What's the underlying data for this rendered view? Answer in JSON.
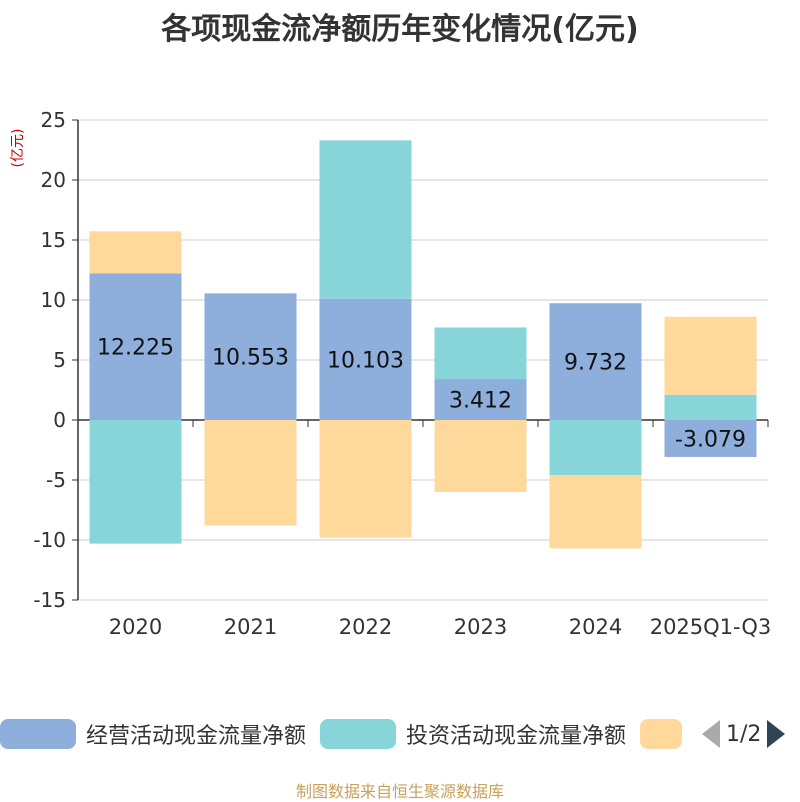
{
  "chart_data": {
    "type": "bar",
    "stacked": true,
    "title": "各项现金流净额历年变化情况(亿元)",
    "ylabel": "(亿元)",
    "xlabel": "",
    "ylim": [
      -15,
      25
    ],
    "yticks": [
      25,
      20,
      15,
      10,
      5,
      0,
      -5,
      -10,
      -15
    ],
    "grid": true,
    "categories": [
      "2020",
      "2021",
      "2022",
      "2023",
      "2024",
      "2025Q1-Q3"
    ],
    "series": [
      {
        "name": "经营活动现金流量净额",
        "color": "#8eaedc",
        "values": [
          12.225,
          10.553,
          10.103,
          3.412,
          9.732,
          -3.079
        ],
        "labels": [
          "12.225",
          "10.553",
          "10.103",
          "3.412",
          "9.732",
          "-3.079"
        ]
      },
      {
        "name": "投资活动现金流量净额",
        "color": "#87d5d8",
        "values": [
          -10.3,
          null,
          13.2,
          4.3,
          -4.6,
          2.1
        ]
      },
      {
        "name": "",
        "color": "#fed99b",
        "values": [
          3.5,
          -8.8,
          -9.8,
          -6.0,
          -6.1,
          6.5
        ]
      }
    ],
    "legend": {
      "placement": "bottom",
      "page": "1/2"
    }
  },
  "source": "制图数据来自恒生聚源数据库"
}
